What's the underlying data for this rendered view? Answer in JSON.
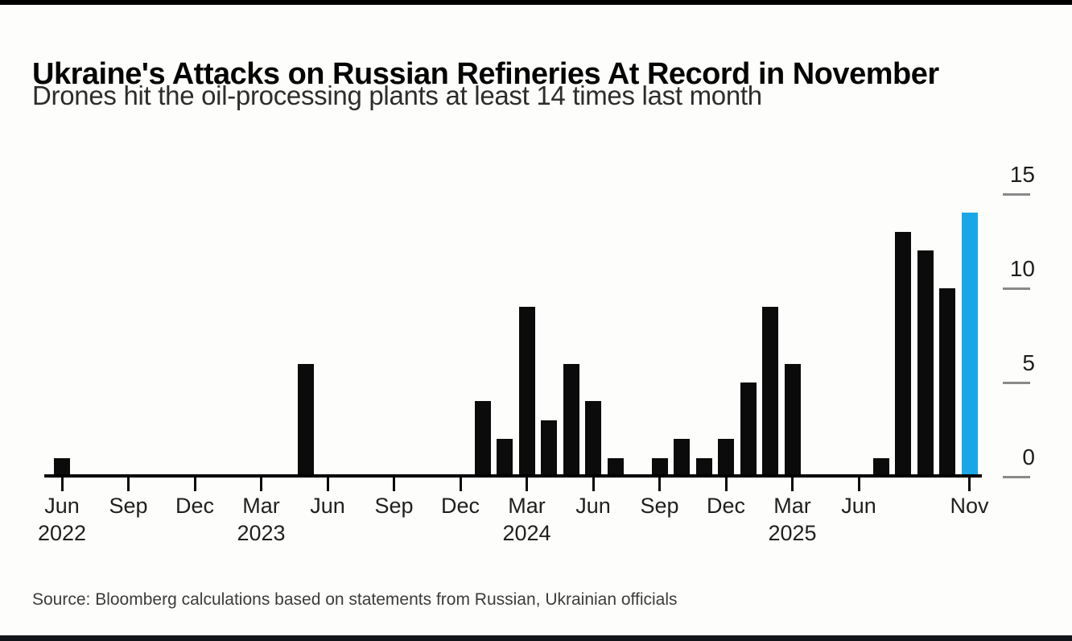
{
  "header": {
    "title": "Ukraine's Attacks on Russian Refineries At Record in November",
    "subtitle": "Drones hit the oil-processing plants at least 14 times last month"
  },
  "footer": {
    "source": "Source: Bloomberg calculations based on statements from Russian, Ukrainian officials"
  },
  "chart_data": {
    "type": "bar",
    "title": "Ukraine's Attacks on Russian Refineries At Record in November",
    "subtitle": "Drones hit the oil-processing plants at least 14 times last month",
    "source": "Source: Bloomberg calculations based on statements from Russian, Ukrainian officials",
    "unit": "attacks per month",
    "categories": [
      "2022-06",
      "2022-07",
      "2022-08",
      "2022-09",
      "2022-10",
      "2022-11",
      "2022-12",
      "2023-01",
      "2023-02",
      "2023-03",
      "2023-04",
      "2023-05",
      "2023-06",
      "2023-07",
      "2023-08",
      "2023-09",
      "2023-10",
      "2023-11",
      "2023-12",
      "2024-01",
      "2024-02",
      "2024-03",
      "2024-04",
      "2024-05",
      "2024-06",
      "2024-07",
      "2024-08",
      "2024-09",
      "2024-10",
      "2024-11",
      "2024-12",
      "2025-01",
      "2025-02",
      "2025-03",
      "2025-04",
      "2025-05",
      "2025-06",
      "2025-07",
      "2025-08",
      "2025-09",
      "2025-10",
      "2025-11"
    ],
    "values": [
      1,
      0,
      0,
      0,
      0,
      0,
      0,
      0,
      0,
      0,
      0,
      6,
      0,
      0,
      0,
      0,
      0,
      0,
      0,
      4,
      2,
      9,
      3,
      6,
      4,
      1,
      0,
      1,
      2,
      1,
      2,
      5,
      9,
      6,
      0,
      0,
      0,
      1,
      13,
      12,
      10,
      14
    ],
    "highlight_category": "2025-11",
    "bar_color": "#0b0b0b",
    "highlight_color": "#1aa7e8",
    "ylim": [
      0,
      15
    ],
    "yticks": [
      0,
      5,
      10,
      15
    ],
    "yaxis_side": "right",
    "grid": false,
    "legend": "none",
    "xticks": [
      {
        "category": "2022-06",
        "label": "Jun",
        "year": "2022"
      },
      {
        "category": "2022-09",
        "label": "Sep"
      },
      {
        "category": "2022-12",
        "label": "Dec"
      },
      {
        "category": "2023-03",
        "label": "Mar",
        "year": "2023"
      },
      {
        "category": "2023-06",
        "label": "Jun"
      },
      {
        "category": "2023-09",
        "label": "Sep"
      },
      {
        "category": "2023-12",
        "label": "Dec"
      },
      {
        "category": "2024-03",
        "label": "Mar",
        "year": "2024"
      },
      {
        "category": "2024-06",
        "label": "Jun"
      },
      {
        "category": "2024-09",
        "label": "Sep"
      },
      {
        "category": "2024-12",
        "label": "Dec"
      },
      {
        "category": "2025-03",
        "label": "Mar",
        "year": "2025"
      },
      {
        "category": "2025-06",
        "label": "Jun"
      },
      {
        "category": "2025-11",
        "label": "Nov"
      }
    ]
  }
}
